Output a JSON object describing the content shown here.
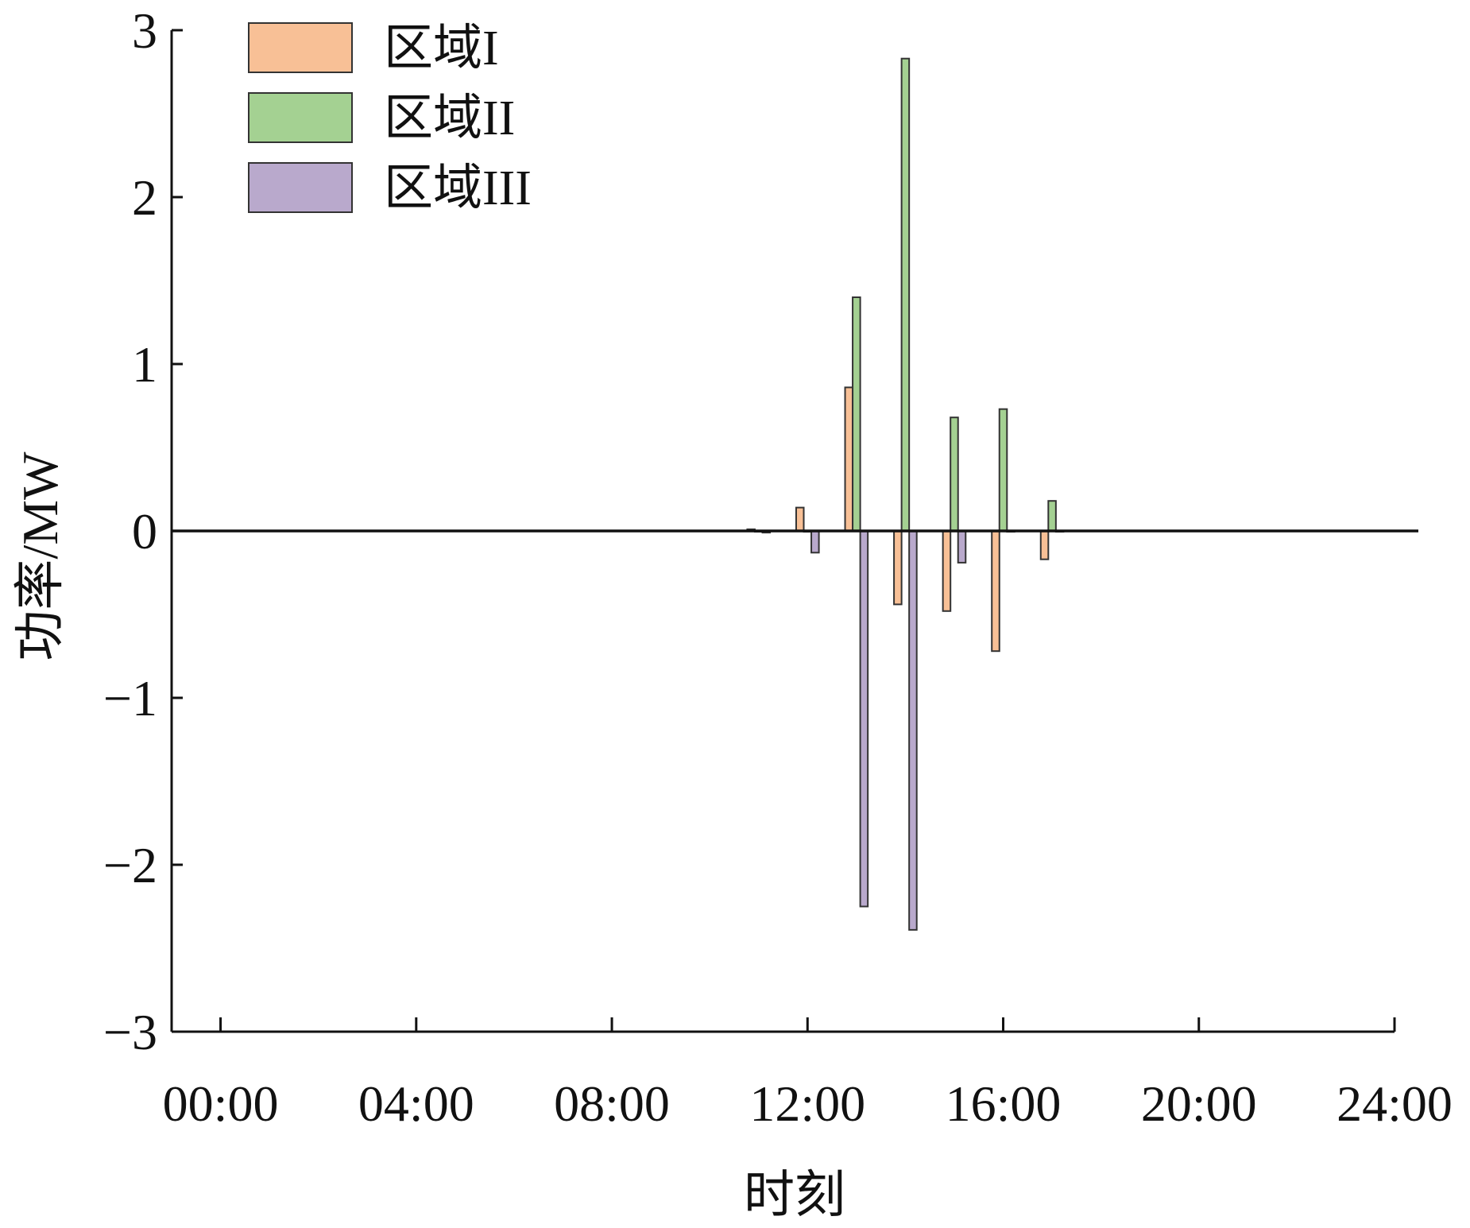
{
  "chart_data": {
    "type": "bar",
    "xlabel": "时刻",
    "ylabel": "功率/MW",
    "xlim": [
      -1,
      24
    ],
    "ylim": [
      -3,
      3
    ],
    "x_ticks": [
      {
        "label": "00:00",
        "value": 0
      },
      {
        "label": "04:00",
        "value": 4
      },
      {
        "label": "08:00",
        "value": 8
      },
      {
        "label": "12:00",
        "value": 12
      },
      {
        "label": "16:00",
        "value": 16
      },
      {
        "label": "20:00",
        "value": 20
      },
      {
        "label": "24:00",
        "value": 24
      }
    ],
    "y_ticks": [
      {
        "label": "3",
        "value": 3
      },
      {
        "label": "2",
        "value": 2
      },
      {
        "label": "1",
        "value": 1
      },
      {
        "label": "0",
        "value": 0
      },
      {
        "label": "−1",
        "value": -1
      },
      {
        "label": "−2",
        "value": -2
      },
      {
        "label": "−3",
        "value": -3
      }
    ],
    "x": [
      11,
      12,
      13,
      14,
      15,
      16,
      17
    ],
    "series": [
      {
        "name": "区域I",
        "color": "#f8c096",
        "values": [
          0.01,
          0.14,
          0.86,
          -0.44,
          -0.48,
          -0.72,
          -0.17
        ]
      },
      {
        "name": "区域II",
        "color": "#a4d192",
        "values": [
          0,
          0,
          1.4,
          2.83,
          0.68,
          0.73,
          0.18
        ]
      },
      {
        "name": "区域III",
        "color": "#b9a9cc",
        "values": [
          -0.01,
          -0.13,
          -2.25,
          -2.39,
          -0.19,
          0,
          0
        ]
      }
    ],
    "legend_position": "top-left",
    "grid": false
  }
}
